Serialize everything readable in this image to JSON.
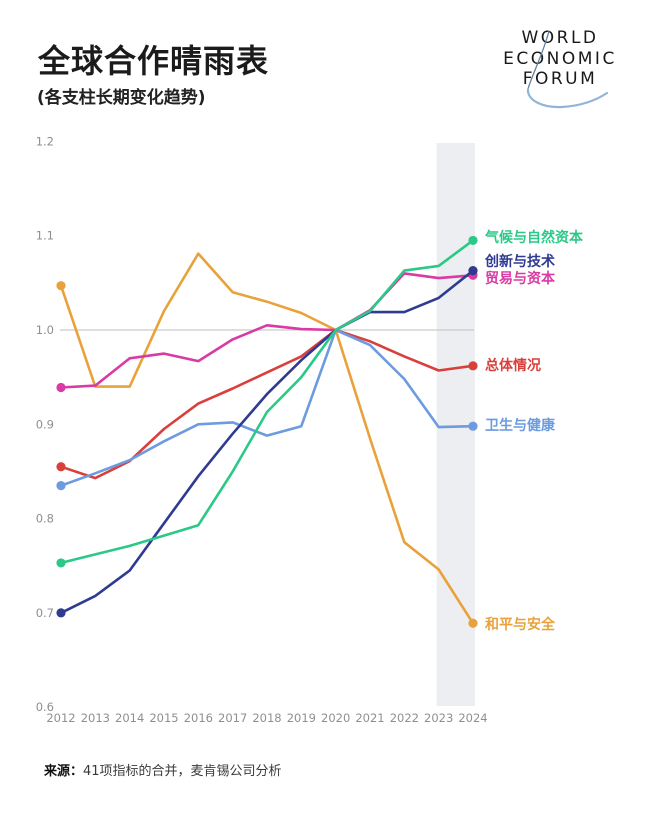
{
  "header": {
    "title": "全球合作晴雨表",
    "subtitle": "(各支柱长期变化趋势)",
    "logo_lines": [
      "WORLD",
      "ECONOMIC",
      "FORUM"
    ]
  },
  "source": {
    "label": "来源：",
    "text": "41项指标的合并，麦肯锡公司分析"
  },
  "chart_data": {
    "type": "line",
    "x": [
      2012,
      2013,
      2014,
      2015,
      2016,
      2017,
      2018,
      2019,
      2020,
      2021,
      2022,
      2023,
      2024
    ],
    "x_ticks": [
      "2012",
      "2013",
      "2014",
      "2015",
      "2016",
      "2017",
      "2018",
      "2019",
      "2020",
      "2021",
      "2022",
      "2023",
      "2024"
    ],
    "y_ticks": [
      "1.2",
      "1.1",
      "1.0",
      "0.9",
      "0.8",
      "0.7",
      "0.6"
    ],
    "ylim": [
      0.6,
      1.2
    ],
    "gridline_at": 1.0,
    "grid": "single horizontal reference line at 1.0",
    "legend_position": "right of line endpoints",
    "highlight_band": {
      "from": 2023,
      "to": 2024,
      "color": "#eceef1"
    },
    "series": [
      {
        "name": "气候与自然资本",
        "color": "#2bc987",
        "values": [
          0.753,
          0.762,
          0.771,
          0.782,
          0.793,
          0.85,
          0.913,
          0.95,
          1.0,
          1.02,
          1.063,
          1.068,
          1.095
        ]
      },
      {
        "name": "创新与技术",
        "color": "#2f3b90",
        "values": [
          0.7,
          0.718,
          0.745,
          0.795,
          0.845,
          0.89,
          0.932,
          0.968,
          1.0,
          1.019,
          1.019,
          1.034,
          1.063
        ]
      },
      {
        "name": "贸易与资本",
        "color": "#d93aa4",
        "values": [
          0.939,
          0.941,
          0.97,
          0.975,
          0.967,
          0.99,
          1.005,
          1.001,
          1.0,
          1.021,
          1.06,
          1.055,
          1.058
        ]
      },
      {
        "name": "总体情况",
        "color": "#d9403c",
        "values": [
          0.855,
          0.843,
          0.861,
          0.895,
          0.922,
          0.938,
          0.955,
          0.972,
          1.0,
          0.988,
          0.972,
          0.957,
          0.962
        ]
      },
      {
        "name": "卫生与健康",
        "color": "#6c9bdf",
        "values": [
          0.835,
          0.848,
          0.862,
          0.882,
          0.9,
          0.902,
          0.888,
          0.898,
          1.0,
          0.984,
          0.948,
          0.897,
          0.898
        ]
      },
      {
        "name": "和平与安全",
        "color": "#e9a23b",
        "values": [
          1.047,
          0.94,
          0.94,
          1.02,
          1.081,
          1.04,
          1.03,
          1.018,
          1.0,
          0.885,
          0.775,
          0.746,
          0.689
        ]
      }
    ]
  }
}
